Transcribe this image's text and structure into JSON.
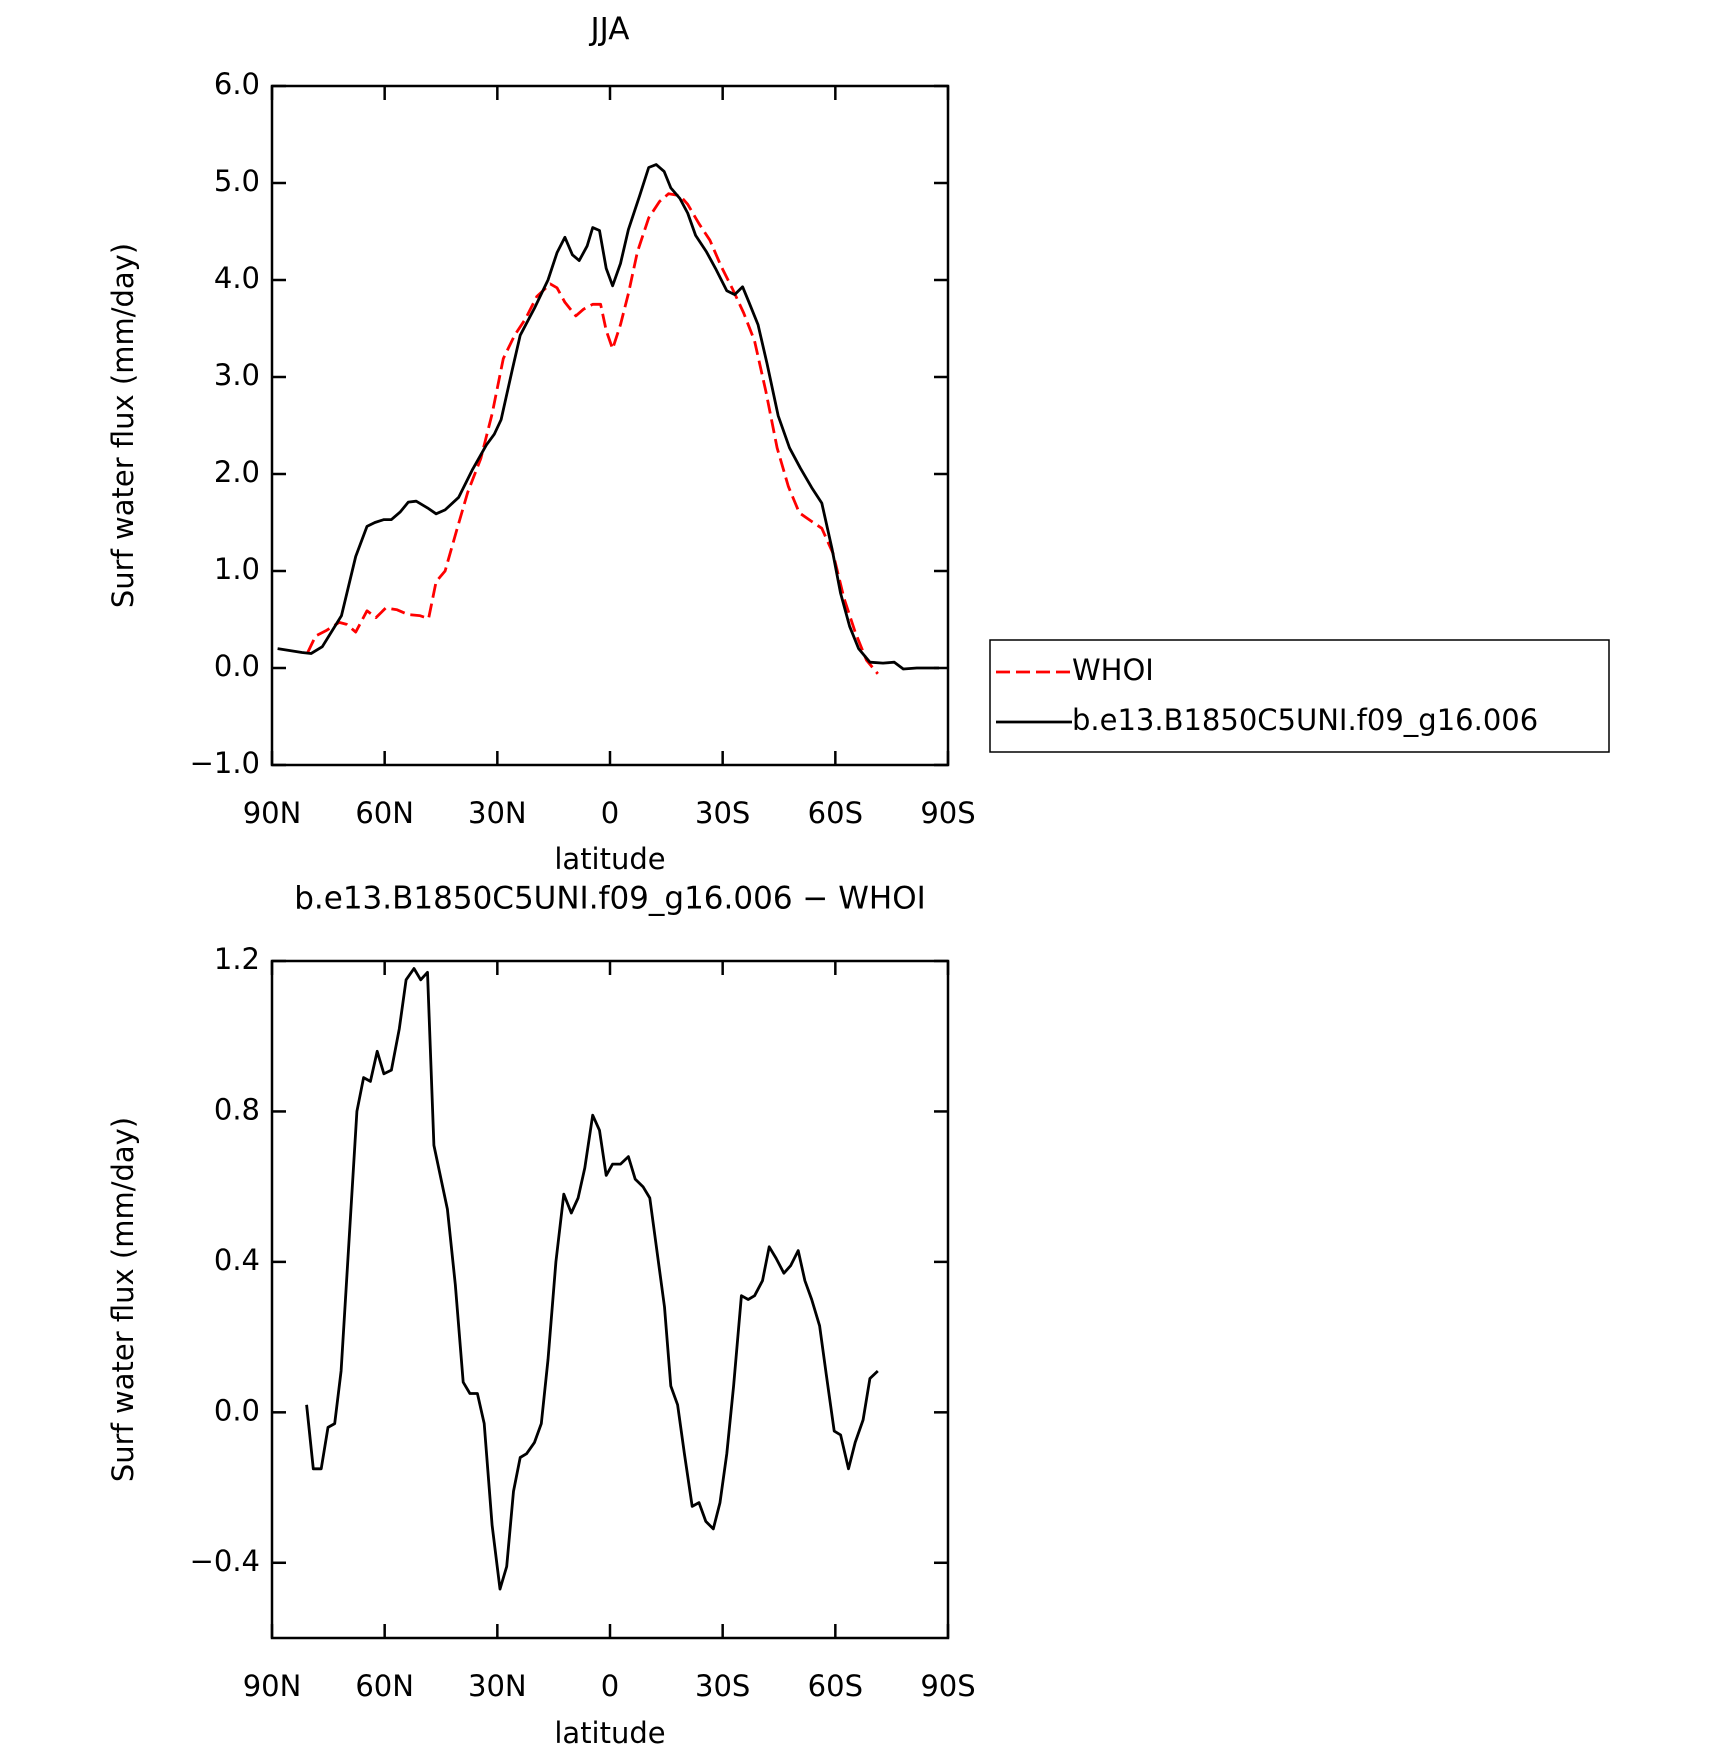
{
  "chart_data": [
    {
      "type": "line",
      "title": "JJA",
      "xlabel": "latitude",
      "ylabel": "Surf water flux (mm/day)",
      "xlim": [
        90,
        -90
      ],
      "xticks": [
        {
          "value": 90,
          "label": "90N"
        },
        {
          "value": 60,
          "label": "60N"
        },
        {
          "value": 30,
          "label": "30N"
        },
        0,
        {
          "value": -30,
          "label": "30S"
        },
        {
          "value": -60,
          "label": "60S"
        },
        {
          "value": -90,
          "label": "90S"
        }
      ],
      "ylim": [
        -1,
        6
      ],
      "yticks": [
        {
          "value": -1,
          "label": "−1.0"
        },
        {
          "value": 0,
          "label": "0.0"
        },
        {
          "value": 1,
          "label": "1.0"
        },
        {
          "value": 2,
          "label": "2.0"
        },
        {
          "value": 3,
          "label": "3.0"
        },
        {
          "value": 4,
          "label": "4.0"
        },
        {
          "value": 5,
          "label": "5.0"
        },
        {
          "value": 6,
          "label": "6.0"
        }
      ],
      "legend": "outside-right",
      "series": [
        {
          "name": "WHOI",
          "color": "#ff0000",
          "line_style": "dashed",
          "x": [
            80.5,
            78.4,
            75.4,
            72.1,
            70.1,
            67.7,
            64.7,
            62.3,
            59.7,
            56.7,
            53.7,
            50.7,
            48.3,
            46.3,
            43.9,
            40.9,
            37.9,
            34.4,
            31.4,
            28.4,
            25.4,
            22.5,
            19.5,
            15.9,
            14.1,
            12.0,
            9.1,
            7.0,
            4.6,
            2.5,
            1.0,
            -0.7,
            -2.8,
            -4.9,
            -7.3,
            -10.3,
            -13.2,
            -15.6,
            -18.6,
            -20.7,
            -23.7,
            -26.6,
            -29.6,
            -32.6,
            -35.6,
            -38.5,
            -41.5,
            -44.5,
            -47.5,
            -50.4,
            -53.4,
            -56.4,
            -59.4,
            -62.3,
            -65.3,
            -68.3,
            -71.3
          ],
          "values": [
            0.16,
            0.33,
            0.39,
            0.47,
            0.45,
            0.37,
            0.59,
            0.52,
            0.62,
            0.6,
            0.55,
            0.54,
            0.51,
            0.89,
            1.0,
            1.41,
            1.81,
            2.16,
            2.62,
            3.19,
            3.43,
            3.6,
            3.83,
            3.96,
            3.92,
            3.77,
            3.63,
            3.7,
            3.75,
            3.75,
            3.48,
            3.29,
            3.54,
            3.86,
            4.29,
            4.64,
            4.81,
            4.89,
            4.87,
            4.78,
            4.58,
            4.41,
            4.14,
            3.91,
            3.66,
            3.37,
            2.85,
            2.27,
            1.87,
            1.6,
            1.52,
            1.44,
            1.18,
            0.72,
            0.37,
            0.08,
            -0.06
          ]
        },
        {
          "name": "b.e13.B1850C5UNI.f09_g16.006",
          "color": "#000000",
          "line_style": "solid",
          "x": [
            88.5,
            82,
            79.6,
            76.6,
            71.5,
            67.7,
            64.7,
            62.6,
            60.2,
            58.2,
            55.8,
            53.7,
            51.6,
            48.6,
            46.3,
            43.9,
            40.3,
            36.7,
            32.9,
            30.8,
            29.0,
            26.0,
            23.9,
            20.1,
            16.5,
            14.1,
            12.0,
            10.0,
            8.2,
            6.1,
            4.6,
            2.8,
            1.0,
            -0.7,
            -2.8,
            -4.9,
            -7.9,
            -10.3,
            -12.3,
            -14.4,
            -16.2,
            -18.6,
            -20.7,
            -22.8,
            -25.7,
            -28.1,
            -31.1,
            -33.2,
            -35.3,
            -37.0,
            -39.4,
            -41.8,
            -44.8,
            -47.8,
            -50.7,
            -53.7,
            -56.4,
            -59.1,
            -61.4,
            -63.8,
            -66.2,
            -69.2,
            -72.7,
            -75.7,
            -78.1,
            -81.7,
            -87.6
          ],
          "values": [
            0.2,
            0.16,
            0.15,
            0.22,
            0.54,
            1.15,
            1.46,
            1.5,
            1.53,
            1.53,
            1.61,
            1.71,
            1.72,
            1.65,
            1.59,
            1.63,
            1.76,
            2.04,
            2.3,
            2.41,
            2.56,
            3.08,
            3.43,
            3.71,
            4.0,
            4.28,
            4.44,
            4.26,
            4.2,
            4.35,
            4.54,
            4.51,
            4.12,
            3.94,
            4.17,
            4.52,
            4.87,
            5.16,
            5.19,
            5.12,
            4.95,
            4.84,
            4.69,
            4.46,
            4.29,
            4.12,
            3.89,
            3.85,
            3.93,
            3.77,
            3.54,
            3.14,
            2.6,
            2.27,
            2.06,
            1.86,
            1.7,
            1.23,
            0.77,
            0.43,
            0.2,
            0.06,
            0.05,
            0.06,
            -0.01,
            0.0,
            0.0
          ]
        }
      ]
    },
    {
      "type": "line",
      "title": "b.e13.B1850C5UNI.f09_g16.006 − WHOI",
      "xlabel": "latitude",
      "ylabel": "Surf water flux (mm/day)",
      "xlim": [
        90,
        -90
      ],
      "xticks": [
        {
          "value": 90,
          "label": "90N"
        },
        {
          "value": 60,
          "label": "60N"
        },
        {
          "value": 30,
          "label": "30N"
        },
        0,
        {
          "value": -30,
          "label": "30S"
        },
        {
          "value": -60,
          "label": "60S"
        },
        {
          "value": -90,
          "label": "90S"
        }
      ],
      "ylim": [
        -0.6,
        1.2
      ],
      "yticks": [
        {
          "value": -0.4,
          "label": "−0.4"
        },
        {
          "value": 0,
          "label": "0.0"
        },
        0.4,
        0.8,
        1.2
      ],
      "series": [
        {
          "color": "#000000",
          "line_style": "solid",
          "x": [
            80.8,
            79.0,
            76.9,
            75.1,
            73.3,
            71.6,
            67.4,
            65.6,
            63.8,
            62.0,
            60.2,
            58.2,
            56.1,
            54.3,
            52.2,
            50.4,
            48.6,
            46.9,
            43.3,
            41.2,
            39.1,
            37.3,
            35.3,
            33.5,
            31.4,
            29.3,
            27.5,
            25.7,
            23.9,
            22.2,
            20.1,
            18.3,
            16.5,
            14.4,
            12.3,
            10.3,
            8.5,
            6.7,
            4.6,
            2.8,
            1.0,
            -0.7,
            -2.8,
            -4.9,
            -6.7,
            -8.8,
            -10.6,
            -14.5,
            -16.2,
            -18.0,
            -19.8,
            -21.9,
            -23.7,
            -25.5,
            -27.5,
            -29.3,
            -31.1,
            -32.9,
            -35.0,
            -36.8,
            -38.5,
            -40.6,
            -42.4,
            -44.2,
            -46.3,
            -48.1,
            -50.1,
            -51.9,
            -53.7,
            -55.8,
            -57.6,
            -59.7,
            -61.4,
            -63.5,
            -65.3,
            -67.4,
            -69.2,
            -71.3
          ],
          "values": [
            0.02,
            -0.15,
            -0.15,
            -0.04,
            -0.03,
            0.11,
            0.8,
            0.89,
            0.88,
            0.96,
            0.9,
            0.91,
            1.02,
            1.15,
            1.18,
            1.15,
            1.17,
            0.71,
            0.54,
            0.34,
            0.08,
            0.05,
            0.05,
            -0.03,
            -0.3,
            -0.47,
            -0.41,
            -0.21,
            -0.12,
            -0.11,
            -0.08,
            -0.03,
            0.14,
            0.4,
            0.58,
            0.53,
            0.57,
            0.65,
            0.79,
            0.75,
            0.63,
            0.66,
            0.66,
            0.68,
            0.62,
            0.6,
            0.57,
            0.28,
            0.07,
            0.02,
            -0.11,
            -0.25,
            -0.24,
            -0.29,
            -0.31,
            -0.24,
            -0.11,
            0.07,
            0.31,
            0.3,
            0.31,
            0.35,
            0.44,
            0.41,
            0.37,
            0.39,
            0.43,
            0.35,
            0.3,
            0.23,
            0.1,
            -0.05,
            -0.06,
            -0.15,
            -0.08,
            -0.02,
            0.09,
            0.11
          ]
        }
      ]
    }
  ]
}
